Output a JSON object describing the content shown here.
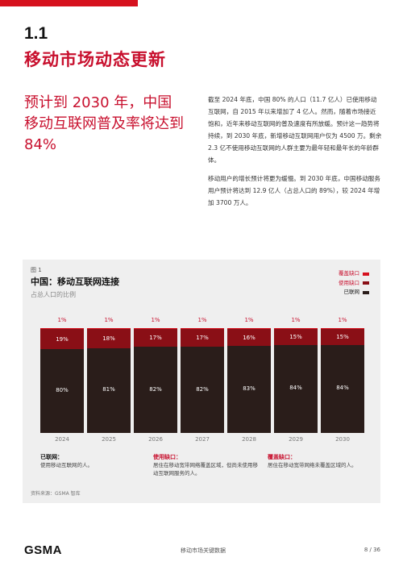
{
  "section": {
    "number": "1.1",
    "title": "移动市场动态更新"
  },
  "headline": "预计到 2030 年，中国移动互联网普及率将达到 84%",
  "paragraphs": [
    "截至 2024 年底，中国 80% 的人口（11.7 亿人）已使用移动互联网，自 2015 年以来增加了 4 亿人。然而，随着市场接近饱和，近年来移动互联网的普及速度有所放缓。预计这一趋势将持续，到 2030 年底，新增移动互联网用户仅为 4500 万。剩余 2.3 亿不使用移动互联网的人群主要为最年轻和最年长的年龄群体。",
    "移动用户的增长预计将更为缓慢。到 2030 年底，中国移动服务用户预计将达到 12.9 亿人（占总人口的 89%），较 2024 年增加 3700 万人。"
  ],
  "figure": {
    "label": "图 1",
    "title": "中国：移动互联网连接",
    "subtitle": "占总人口的比例",
    "legend": [
      {
        "name": "覆盖缺口",
        "color": "#d6111e"
      },
      {
        "name": "使用缺口",
        "color": "#8a0f16"
      },
      {
        "name": "已联网",
        "color": "#2a1d1a"
      }
    ],
    "definitions": [
      {
        "title": "已联网：",
        "desc": "使用移动互联网的人。"
      },
      {
        "title": "使用缺口：",
        "desc": "居住在移动宽带网络覆盖区域，但尚未使用移动互联网服务的人。"
      },
      {
        "title": "覆盖缺口：",
        "desc": "居住在移动宽带网络未覆盖区域的人。"
      }
    ],
    "source": "资料来源：GSMA 智库"
  },
  "chart_data": {
    "type": "bar",
    "stacked": true,
    "categories": [
      "2024",
      "2025",
      "2026",
      "2027",
      "2028",
      "2029",
      "2030"
    ],
    "series": [
      {
        "name": "已联网",
        "values": [
          80,
          81,
          82,
          82,
          83,
          84,
          84
        ],
        "labels": [
          "80%",
          "81%",
          "82%",
          "82%",
          "83%",
          "84%",
          "84%"
        ]
      },
      {
        "name": "使用缺口",
        "values": [
          19,
          18,
          17,
          17,
          16,
          15,
          15
        ],
        "labels": [
          "19%",
          "18%",
          "17%",
          "17%",
          "16%",
          "15%",
          "15%"
        ]
      },
      {
        "name": "覆盖缺口",
        "values": [
          1,
          1,
          1,
          1,
          1,
          1,
          1
        ],
        "labels": [
          "1%",
          "1%",
          "1%",
          "1%",
          "1%",
          "1%",
          "1%"
        ]
      }
    ],
    "ylim": [
      0,
      100
    ],
    "grid": false,
    "legend_position": "top-right"
  },
  "footer": {
    "logo": "GSMA",
    "center": "移动市场关键数据",
    "page": "8 / 36"
  }
}
